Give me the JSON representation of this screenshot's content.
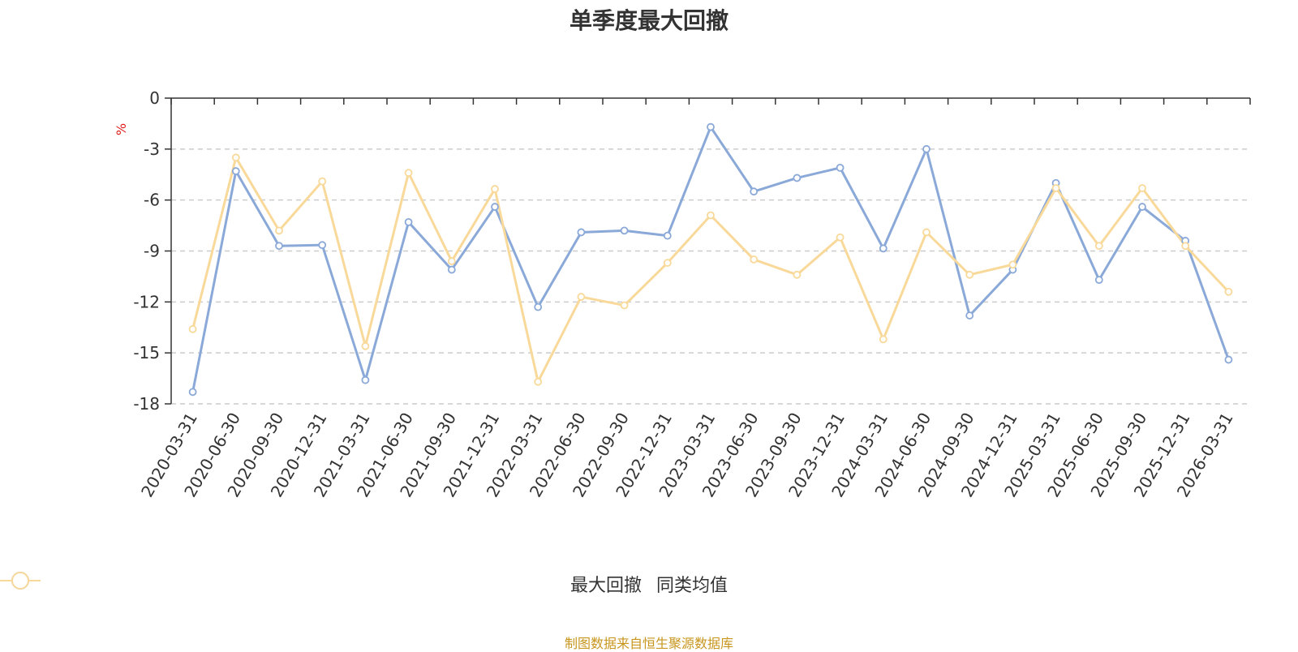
{
  "chart_data": {
    "type": "line",
    "title": "单季度最大回撤",
    "ylabel": "%",
    "ylim": [
      -18,
      0
    ],
    "yticks": [
      0,
      -3,
      -6,
      -9,
      -12,
      -15,
      -18
    ],
    "categories": [
      "2020-03-31",
      "2020-06-30",
      "2020-09-30",
      "2020-12-31",
      "2021-03-31",
      "2021-06-30",
      "2021-09-30",
      "2021-12-31",
      "2022-03-31",
      "2022-06-30",
      "2022-09-30",
      "2022-12-31",
      "2023-03-31",
      "2023-06-30",
      "2023-09-30",
      "2023-12-31",
      "2024-03-31",
      "2024-06-30",
      "2024-09-30",
      "2024-12-31",
      "2025-03-31",
      "2025-06-30",
      "2025-09-30",
      "2025-12-31",
      "2026-03-31"
    ],
    "series": [
      {
        "name": "最大回撤",
        "color": "#8aa9d8",
        "values": [
          -17.3,
          -4.3,
          -8.7,
          -8.65,
          -16.6,
          -7.3,
          -10.1,
          -6.4,
          -12.3,
          -7.9,
          -7.8,
          -8.1,
          -1.7,
          -5.5,
          -4.7,
          -4.1,
          -8.85,
          -3.0,
          -12.8,
          -10.1,
          -5.0,
          -10.7,
          -6.4,
          -8.4,
          -15.4
        ]
      },
      {
        "name": "同类均值",
        "color": "#f9d99a",
        "values": [
          -13.6,
          -3.5,
          -7.8,
          -4.9,
          -14.6,
          -4.4,
          -9.6,
          -5.35,
          -16.7,
          -11.7,
          -12.2,
          -9.7,
          -6.9,
          -9.5,
          -10.4,
          -8.2,
          -14.2,
          -7.9,
          -10.4,
          -9.8,
          -5.3,
          -8.7,
          -5.3,
          -8.7,
          -11.4
        ]
      }
    ],
    "grid": "horizontal-dashed",
    "legend": "bottom-center"
  },
  "source": "制图数据来自恒生聚源数据库"
}
